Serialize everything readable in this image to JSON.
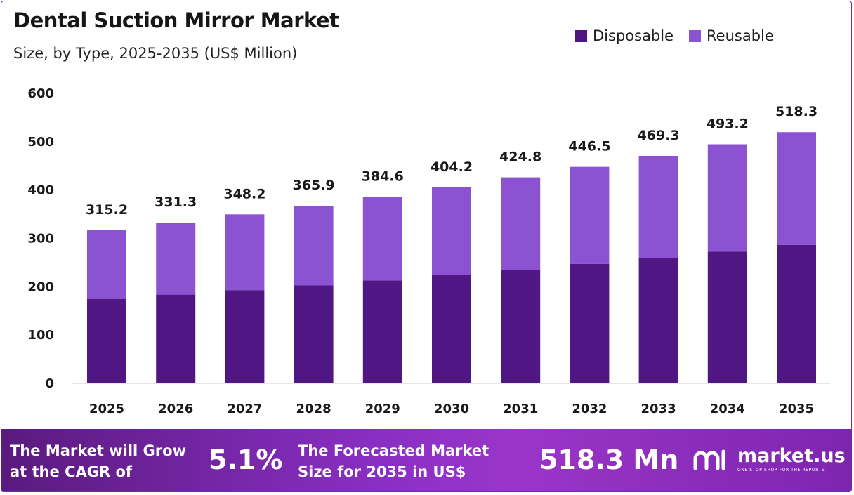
{
  "chart_data": {
    "type": "bar",
    "stacked": true,
    "title": "Dental Suction Mirror Market",
    "subtitle": "Size, by Type, 2025-2035 (US$ Million)",
    "categories": [
      "2025",
      "2026",
      "2027",
      "2028",
      "2029",
      "2030",
      "2031",
      "2032",
      "2033",
      "2034",
      "2035"
    ],
    "series": [
      {
        "name": "Disposable",
        "color": "#4f1684",
        "values": [
          173.4,
          182.2,
          191.5,
          201.2,
          211.5,
          222.3,
          233.6,
          245.6,
          258.1,
          271.3,
          285.1
        ]
      },
      {
        "name": "Reusable",
        "color": "#8b52d1",
        "values": [
          141.8,
          149.1,
          156.7,
          164.7,
          173.1,
          181.9,
          191.2,
          200.9,
          211.2,
          221.9,
          233.2
        ]
      }
    ],
    "totals": [
      "315.2",
      "331.3",
      "348.2",
      "365.9",
      "384.6",
      "404.2",
      "424.8",
      "446.5",
      "469.3",
      "493.2",
      "518.3"
    ],
    "ylim": [
      0,
      600
    ],
    "yticks": [
      0,
      100,
      200,
      300,
      400,
      500,
      600
    ],
    "xlabel": "",
    "ylabel": "",
    "legend_position": "top-right",
    "grid": false
  },
  "footer": {
    "cagr_label_line1": "The Market will Grow",
    "cagr_label_line2": "at the CAGR of",
    "cagr_value": "5.1%",
    "forecast_label_line1": "The Forecasted Market",
    "forecast_label_line2": "Size for 2035 in US$",
    "forecast_value": "518.3 Mn",
    "brand_name": "market.us",
    "brand_tagline": "ONE STOP SHOP FOR THE REPORTS",
    "logo_icon": "market-us-logo-icon"
  }
}
